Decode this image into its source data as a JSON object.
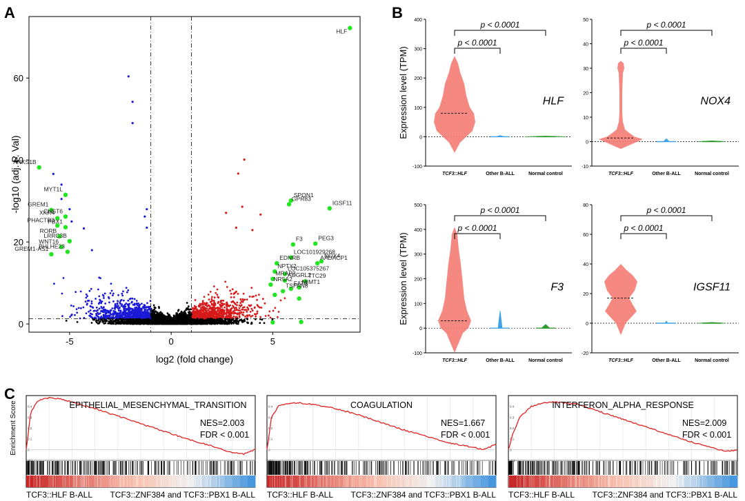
{
  "panel_labels": {
    "a": "A",
    "b": "B",
    "c": "C"
  },
  "chart_data": [
    {
      "type": "scatter",
      "panel": "A",
      "xlabel": "log2 (fold change)",
      "ylabel": "-log10 (adj. P. Val)",
      "xlim": [
        -7,
        9.3
      ],
      "ylim": [
        -2,
        75
      ],
      "x_ticks": [
        -5,
        0,
        5
      ],
      "y_ticks": [
        0,
        20,
        40,
        60
      ],
      "fold_change_thresholds": [
        -1,
        1
      ],
      "significance_threshold": 1.3,
      "colors": {
        "down": "#1a1ad6",
        "up": "#d61a1a",
        "ns": "#000000",
        "highlight": "#22e622"
      },
      "highlighted_genes": [
        {
          "label": "HLF",
          "x": 8.8,
          "y": 72.2
        },
        {
          "label": "ANKS1B",
          "x": -6.5,
          "y": 38.2
        },
        {
          "label": "MYT1L",
          "x": -5.2,
          "y": 31.5
        },
        {
          "label": "GREM1",
          "x": -5.9,
          "y": 27.8
        },
        {
          "label": "XKR4",
          "x": -5.6,
          "y": 25.8
        },
        {
          "label": "CHST6",
          "x": -5.2,
          "y": 26.2
        },
        {
          "label": "PHACTR3",
          "x": -5.6,
          "y": 24.0
        },
        {
          "label": "PBX1",
          "x": -5.2,
          "y": 23.6
        },
        {
          "label": "RORB",
          "x": -5.5,
          "y": 21.4
        },
        {
          "label": "LRRC3B",
          "x": -5.0,
          "y": 20.2
        },
        {
          "label": "WNT16",
          "x": -5.4,
          "y": 18.8
        },
        {
          "label": "BHLHE23",
          "x": -5.1,
          "y": 17.6
        },
        {
          "label": "GREM1-AS1",
          "x": -5.9,
          "y": 17.0
        },
        {
          "label": "SPON1",
          "x": 5.9,
          "y": 30.1
        },
        {
          "label": "GPR83",
          "x": 5.8,
          "y": 29.2
        },
        {
          "label": "IGSF11",
          "x": 7.8,
          "y": 28.2
        },
        {
          "label": "F3",
          "x": 6.0,
          "y": 19.4
        },
        {
          "label": "PEG3",
          "x": 7.1,
          "y": 19.6
        },
        {
          "label": "LOC101929268",
          "x": 5.9,
          "y": 16.2
        },
        {
          "label": "EDNRB",
          "x": 5.2,
          "y": 14.8
        },
        {
          "label": "NOX4",
          "x": 7.4,
          "y": 15.3
        },
        {
          "label": "AADACP1",
          "x": 7.2,
          "y": 14.8
        },
        {
          "label": "NPTX2",
          "x": 5.1,
          "y": 12.8
        },
        {
          "label": "LOC105375267",
          "x": 5.6,
          "y": 12.2
        },
        {
          "label": "MRAP2",
          "x": 5.0,
          "y": 11.0
        },
        {
          "label": "ADGRL2",
          "x": 5.6,
          "y": 10.6
        },
        {
          "label": "TTC29",
          "x": 6.6,
          "y": 10.4
        },
        {
          "label": "NR5A2",
          "x": 4.9,
          "y": 9.6
        },
        {
          "label": "FAT3",
          "x": 5.9,
          "y": 8.6
        },
        {
          "label": "MIMT1",
          "x": 6.3,
          "y": 8.9
        },
        {
          "label": "TSPAN8",
          "x": 5.5,
          "y": 8.0
        }
      ],
      "extra_highlight_points": [
        {
          "x": 6.3,
          "y": 6.2
        },
        {
          "x": 5.0,
          "y": 0.4
        },
        {
          "x": 6.4,
          "y": 0.5
        },
        {
          "x": 5.1,
          "y": 7.1
        }
      ],
      "notable_points": {
        "down": [
          [
            -2.1,
            60.4
          ],
          [
            -1.9,
            54.2
          ],
          [
            -1.9,
            49.0
          ],
          [
            -5.8,
            36.6
          ],
          [
            -5.4,
            34.0
          ],
          [
            -5.4,
            30.5
          ],
          [
            -5.0,
            28.0
          ],
          [
            -4.9,
            25.0
          ],
          [
            -4.3,
            23.3
          ],
          [
            -3.9,
            18.0
          ],
          [
            -1.2,
            28.0
          ],
          [
            -1.3,
            26.2
          ],
          [
            -1.2,
            23.5
          ]
        ],
        "up": [
          [
            3.6,
            40.1
          ],
          [
            3.3,
            36.7
          ],
          [
            3.5,
            28.6
          ],
          [
            2.7,
            27.1
          ],
          [
            4.4,
            26.7
          ],
          [
            4.0,
            22.9
          ],
          [
            3.2,
            23.5
          ]
        ]
      }
    },
    {
      "type": "violin",
      "panel": "B",
      "title": "HLF",
      "ylabel": "Expression level (TPM)",
      "ylim": [
        -100,
        400
      ],
      "y_ticks": [
        -100,
        0,
        100,
        200,
        300,
        400
      ],
      "categories": [
        "TCF3::HLF",
        "Other B-ALL",
        "Normal control"
      ],
      "medians": [
        80,
        0,
        0
      ],
      "comparisons": [
        {
          "pair": [
            "TCF3::HLF",
            "Other B-ALL"
          ],
          "label": "p < 0.0001"
        },
        {
          "pair": [
            "TCF3::HLF",
            "Normal control"
          ],
          "label": "p < 0.0001"
        }
      ]
    },
    {
      "type": "violin",
      "panel": "B",
      "title": "NOX4",
      "ylim": [
        -10,
        50
      ],
      "y_ticks": [
        -10,
        0,
        10,
        20,
        30,
        40,
        50
      ],
      "categories": [
        "TCF3::HLF",
        "Other B-ALL",
        "Normal control"
      ],
      "medians": [
        1.5,
        0,
        0
      ],
      "comparisons": [
        {
          "pair": [
            "TCF3::HLF",
            "Other B-ALL"
          ],
          "label": "p < 0.0001"
        },
        {
          "pair": [
            "TCF3::HLF",
            "Normal control"
          ],
          "label": "p < 0.0001"
        }
      ]
    },
    {
      "type": "violin",
      "panel": "B",
      "title": "F3",
      "ylabel": "Expression level (TPM)",
      "ylim": [
        -100,
        500
      ],
      "y_ticks": [
        -100,
        0,
        100,
        200,
        300,
        400,
        500
      ],
      "categories": [
        "TCF3::HLF",
        "Other B-ALL",
        "Normal control"
      ],
      "medians": [
        30,
        0,
        0
      ],
      "comparisons": [
        {
          "pair": [
            "TCF3::HLF",
            "Other B-ALL"
          ],
          "label": "p < 0.0001"
        },
        {
          "pair": [
            "TCF3::HLF",
            "Normal control"
          ],
          "label": "p < 0.0001"
        }
      ]
    },
    {
      "type": "violin",
      "panel": "B",
      "title": "IGSF11",
      "ylim": [
        -20,
        80
      ],
      "y_ticks": [
        -20,
        0,
        20,
        40,
        60,
        80
      ],
      "categories": [
        "TCF3::HLF",
        "Other B-ALL",
        "Normal control"
      ],
      "medians": [
        17,
        0,
        0
      ],
      "comparisons": [
        {
          "pair": [
            "TCF3::HLF",
            "Other B-ALL"
          ],
          "label": "p < 0.0001"
        },
        {
          "pair": [
            "TCF3::HLF",
            "Normal control"
          ],
          "label": "p < 0.0001"
        }
      ]
    },
    {
      "type": "line",
      "panel": "C",
      "title": "EPITHELIAL_MESENCHYMAL_TRANSITION",
      "ylabel": "Enrichment Score",
      "nes": "NES=2.003",
      "fdr": "FDR < 0.001",
      "ylim": [
        -0.1,
        0.5
      ],
      "y_ticks": [
        -0.1,
        0,
        0.1,
        0.2,
        0.3,
        0.4
      ],
      "left_label": "TCF3::HLF B-ALL",
      "right_label": "TCF3::ZNF384 and TCF3::PBX1 B-ALL",
      "series": [
        {
          "x": [
            0,
            0.02,
            0.05,
            0.1,
            0.15,
            0.2,
            0.3,
            0.4,
            0.5,
            0.6,
            0.7,
            0.8,
            0.9,
            0.95,
            1.0
          ],
          "values": [
            0.0,
            0.35,
            0.45,
            0.48,
            0.47,
            0.44,
            0.38,
            0.31,
            0.24,
            0.17,
            0.1,
            0.04,
            -0.03,
            -0.04,
            0.0
          ]
        }
      ]
    },
    {
      "type": "line",
      "panel": "C",
      "title": "COAGULATION",
      "nes": "NES=1.667",
      "fdr": "FDR < 0.001",
      "ylim": [
        -0.1,
        0.5
      ],
      "y_ticks": [
        -0.1,
        0,
        0.1,
        0.2,
        0.3,
        0.4
      ],
      "left_label": "TCF3::HLF B-ALL",
      "right_label": "TCF3::ZNF384 and TCF3::PBX1 B-ALL",
      "series": [
        {
          "x": [
            0,
            0.02,
            0.05,
            0.1,
            0.15,
            0.2,
            0.3,
            0.4,
            0.5,
            0.6,
            0.7,
            0.8,
            0.9,
            0.95,
            1.0
          ],
          "values": [
            0.0,
            0.3,
            0.4,
            0.43,
            0.43,
            0.42,
            0.38,
            0.32,
            0.25,
            0.18,
            0.12,
            0.06,
            0.02,
            0.0,
            0.05
          ]
        }
      ]
    },
    {
      "type": "line",
      "panel": "C",
      "title": "INTERFERON_ALPHA_RESPONSE",
      "nes": "NES=2.009",
      "fdr": "FDR < 0.001",
      "ylim": [
        -0.1,
        0.5
      ],
      "y_ticks": [
        -0.1,
        0,
        0.1,
        0.2,
        0.3,
        0.4
      ],
      "left_label": "TCF3::HLF B-ALL",
      "right_label": "TCF3::ZNF384 and TCF3::PBX1 B-ALL",
      "series": [
        {
          "x": [
            0,
            0.02,
            0.05,
            0.1,
            0.15,
            0.2,
            0.3,
            0.4,
            0.5,
            0.6,
            0.7,
            0.8,
            0.9,
            0.95,
            1.0
          ],
          "values": [
            0.0,
            0.15,
            0.3,
            0.4,
            0.43,
            0.44,
            0.42,
            0.35,
            0.28,
            0.21,
            0.14,
            0.07,
            0.01,
            -0.02,
            0.0
          ]
        }
      ]
    }
  ]
}
